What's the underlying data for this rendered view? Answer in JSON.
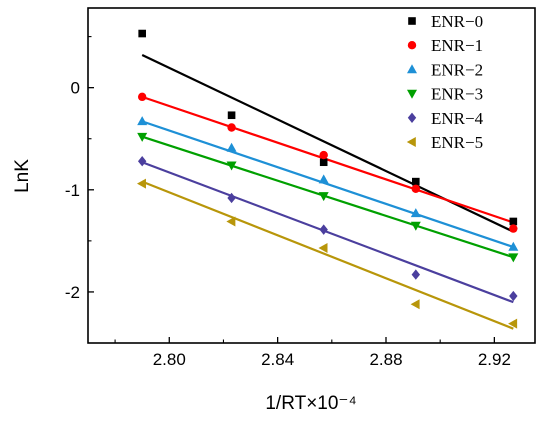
{
  "chart_data": {
    "type": "scatter",
    "xlabel": "1/RT×10⁻⁴",
    "ylabel": "LnK",
    "xlim": [
      2.77,
      2.935
    ],
    "ylim": [
      -2.5,
      0.78
    ],
    "xticks": [
      "2.80",
      "2.84",
      "2.88",
      "2.92"
    ],
    "xtick_values": [
      2.8,
      2.84,
      2.88,
      2.92
    ],
    "yticks": [
      "0",
      "-1",
      "-2"
    ],
    "ytick_values": [
      0,
      -1,
      -2
    ],
    "legend_position": "top-right",
    "x": [
      2.79,
      2.823,
      2.857,
      2.891,
      2.927
    ],
    "series": [
      {
        "name": "ENR−0",
        "marker": "square",
        "color": "#000000",
        "values": [
          0.53,
          -0.27,
          -0.73,
          -0.92,
          -1.31
        ],
        "fit": [
          0.32,
          -1.41
        ]
      },
      {
        "name": "ENR−1",
        "marker": "circle",
        "color": "#ff0000",
        "values": [
          -0.09,
          -0.39,
          -0.66,
          -0.99,
          -1.38
        ],
        "fit": [
          -0.09,
          -1.32
        ]
      },
      {
        "name": "ENR−2",
        "marker": "triangle-up",
        "color": "#1e90d6",
        "values": [
          -0.33,
          -0.59,
          -0.9,
          -1.23,
          -1.56
        ],
        "fit": [
          -0.33,
          -1.56
        ]
      },
      {
        "name": "ENR−3",
        "marker": "triangle-down",
        "color": "#00a000",
        "values": [
          -0.48,
          -0.76,
          -1.06,
          -1.35,
          -1.66
        ],
        "fit": [
          -0.48,
          -1.66
        ]
      },
      {
        "name": "ENR−4",
        "marker": "diamond",
        "color": "#4b3f9e",
        "values": [
          -0.72,
          -1.08,
          -1.39,
          -1.83,
          -2.04
        ],
        "fit": [
          -0.73,
          -2.1
        ]
      },
      {
        "name": "ENR−5",
        "marker": "triangle-left",
        "color": "#b8960a",
        "values": [
          -0.94,
          -1.31,
          -1.57,
          -2.12,
          -2.31
        ],
        "fit": [
          -0.92,
          -2.36
        ]
      }
    ]
  }
}
